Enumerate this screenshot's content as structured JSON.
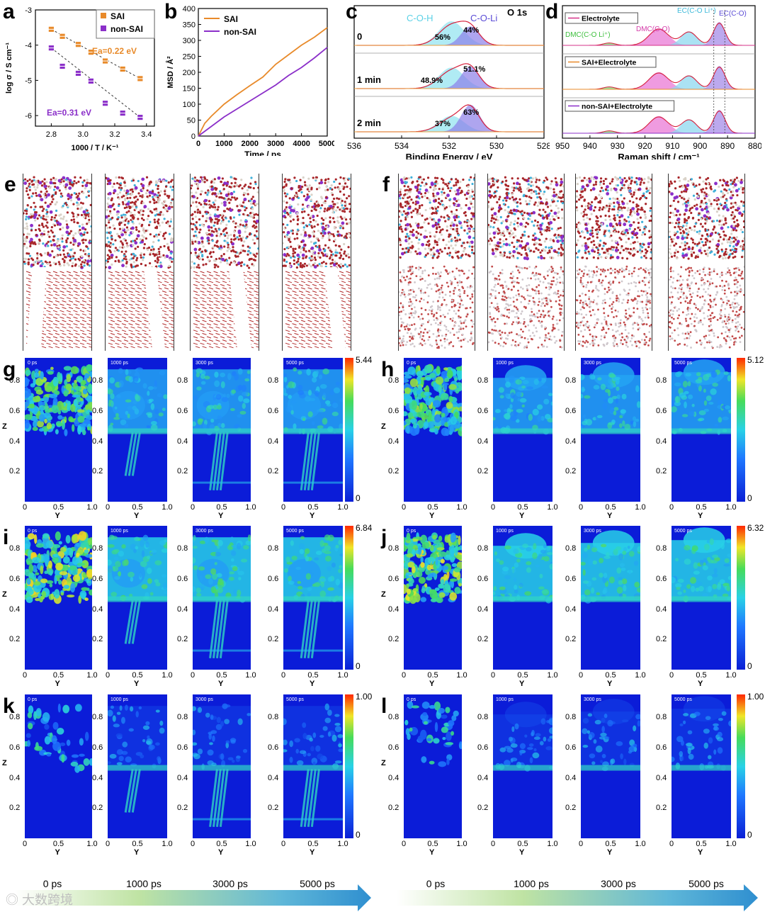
{
  "panel_labels": {
    "a": "a",
    "b": "b",
    "c": "c",
    "d": "d",
    "e": "e",
    "f": "f",
    "g": "g",
    "h": "h",
    "i": "i",
    "j": "j",
    "k": "k",
    "l": "l"
  },
  "chart_data": [
    {
      "id": "a",
      "type": "scatter",
      "xlabel": "1000 / T / K⁻¹",
      "ylabel": "log σ / S cm⁻¹",
      "xlim": [
        2.7,
        3.45
      ],
      "ylim": [
        -6.3,
        -3.0
      ],
      "xticks": [
        2.8,
        3.0,
        3.2,
        3.4
      ],
      "xtick_labels": [
        "2.8",
        "3.0",
        "3.2",
        "3.4"
      ],
      "yticks": [
        -6,
        -5,
        -4,
        -3
      ],
      "ytick_labels": [
        "-6",
        "-5",
        "-4",
        "-3"
      ],
      "series": [
        {
          "name": "SAI",
          "color": "#e88a2a",
          "x": [
            2.8,
            2.87,
            2.97,
            3.05,
            3.14,
            3.25,
            3.36
          ],
          "y": [
            -3.55,
            -3.75,
            -3.98,
            -4.2,
            -4.45,
            -4.68,
            -4.95
          ]
        },
        {
          "name": "non-SAI",
          "color": "#8b2fc9",
          "x": [
            2.8,
            2.87,
            2.97,
            3.05,
            3.14,
            3.25,
            3.36
          ],
          "y": [
            -4.08,
            -4.6,
            -4.8,
            -5.02,
            -5.65,
            -5.93,
            -6.05
          ]
        }
      ],
      "annotations": [
        {
          "text": "Ea=0.22 eV",
          "color": "#e88a2a"
        },
        {
          "text": "Ea=0.31 eV",
          "color": "#8b2fc9"
        }
      ]
    },
    {
      "id": "b",
      "type": "line",
      "xlabel": "Time / ps",
      "ylabel": "MSD / Å²",
      "xlim": [
        0,
        5000
      ],
      "ylim": [
        0,
        400
      ],
      "xticks": [
        0,
        1000,
        2000,
        3000,
        4000,
        5000
      ],
      "yticks": [
        0,
        50,
        100,
        150,
        200,
        250,
        300,
        350,
        400
      ],
      "series": [
        {
          "name": "SAI",
          "color": "#e88a2a",
          "x": [
            0,
            250,
            500,
            1000,
            1500,
            2000,
            2500,
            3000,
            3500,
            4000,
            4500,
            5000
          ],
          "y": [
            0,
            40,
            62,
            100,
            130,
            158,
            185,
            225,
            255,
            285,
            310,
            340
          ]
        },
        {
          "name": "non-SAI",
          "color": "#8b2fc9",
          "x": [
            0,
            250,
            500,
            1000,
            1500,
            2000,
            2500,
            3000,
            3500,
            4000,
            4500,
            5000
          ],
          "y": [
            0,
            15,
            30,
            60,
            85,
            110,
            135,
            160,
            190,
            215,
            245,
            278
          ]
        }
      ]
    },
    {
      "id": "c",
      "type": "line",
      "title": "O 1s",
      "xlabel": "Binding Energy / eV",
      "xlim": [
        536,
        528
      ],
      "xticks": [
        536,
        534,
        532,
        530,
        528
      ],
      "peak_labels": [
        {
          "text": "C-O-H",
          "color": "#5bd1e6"
        },
        {
          "text": "C-O-Li",
          "color": "#5a4bd6"
        }
      ],
      "spectra": [
        {
          "time": "0",
          "C-O-H": "56%",
          "C-O-Li": "44%"
        },
        {
          "time": "1 min",
          "C-O-H": "48.9%",
          "C-O-Li": "51.1%"
        },
        {
          "time": "2 min",
          "C-O-H": "37%",
          "C-O-Li": "63%"
        }
      ]
    },
    {
      "id": "d",
      "type": "line",
      "xlabel": "Raman shift / cm⁻¹",
      "xlim": [
        950,
        880
      ],
      "xticks": [
        950,
        940,
        930,
        920,
        910,
        900,
        890,
        880
      ],
      "peak_labels": [
        "EC(C-O Li⁺)",
        "EC(C-O)",
        "DMC(C-O)",
        "DMC(C-O Li⁺)"
      ],
      "spectra": [
        {
          "name": "Electrolyte",
          "color": "#d6338a"
        },
        {
          "name": "SAI+Electrolyte",
          "color": "#e88a2a"
        },
        {
          "name": "non-SAI+Electrolyte",
          "color": "#8b2fc9"
        }
      ]
    }
  ],
  "heatmaps": {
    "axis_z_label": "Z",
    "axis_y_label": "Y",
    "x_tick_labels": [
      "0",
      "0.5",
      "1.0"
    ],
    "z_tick_labels": [
      "0.2",
      "0.4",
      "0.6",
      "0.8"
    ],
    "colorbar_min": "0",
    "frame_times": [
      "0 ps",
      "1000 ps",
      "3000 ps",
      "5000 ps"
    ],
    "rows": [
      {
        "left": {
          "label": "g",
          "max": "5.44"
        },
        "right": {
          "label": "h",
          "max": "5.12"
        }
      },
      {
        "left": {
          "label": "i",
          "max": "6.84"
        },
        "right": {
          "label": "j",
          "max": "6.32"
        }
      },
      {
        "left": {
          "label": "k",
          "max": "1.00"
        },
        "right": {
          "label": "l",
          "max": "1.00"
        }
      }
    ]
  },
  "timeline": {
    "stages": [
      "0 ps",
      "1000 ps",
      "3000 ps",
      "5000 ps"
    ]
  },
  "watermark": "大数跨境",
  "colors": {
    "sai": "#e88a2a",
    "non_sai": "#8b2fc9",
    "heat_low": "#0a1fd6",
    "heat_high": "#ff2a00"
  }
}
